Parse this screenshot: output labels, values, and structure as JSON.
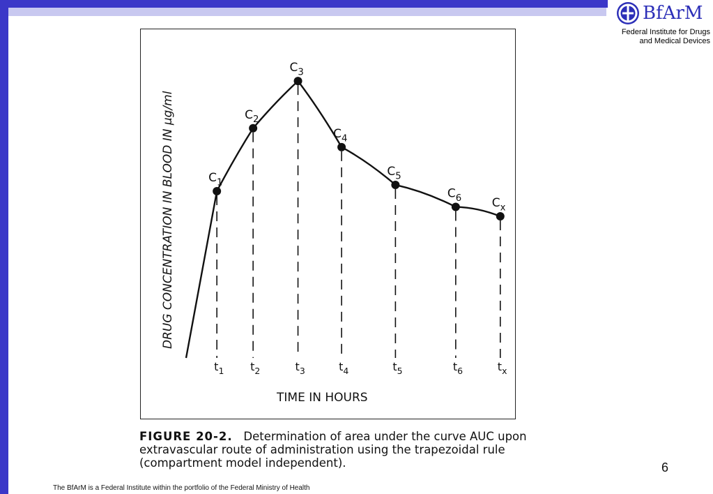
{
  "brand": {
    "name": "BfArM",
    "subtitle_line1": "Federal Institute for Drugs",
    "subtitle_line2": "and Medical Devices"
  },
  "colors": {
    "bar": "#3b37c8",
    "band": "#c8c8f0",
    "logo": "#2c2fb8"
  },
  "caption": {
    "lead": "FIGURE 20-2.",
    "line1": "Determination of area under the curve AUC upon",
    "line2": "extravascular route of administration using the trapezoidal rule",
    "line3": "(compartment model independent)."
  },
  "page_number": "6",
  "footer": "The BfArM is a Federal Institute within the portfolio of the Federal Ministry of Health",
  "chart_data": {
    "type": "line",
    "ylabel": "DRUG CONCENTRATION IN BLOOD IN µg/ml",
    "xlabel": "TIME IN HOURS",
    "grid": false,
    "start": {
      "x": 0,
      "y": 0
    },
    "points": [
      {
        "label": "C",
        "sub": "1",
        "tick": "t",
        "tick_sub": "1",
        "x": 0.96,
        "y": 0.53
      },
      {
        "label": "C",
        "sub": "2",
        "tick": "t",
        "tick_sub": "2",
        "x": 2.09,
        "y": 0.73
      },
      {
        "label": "C",
        "sub": "3",
        "tick": "t",
        "tick_sub": "3",
        "x": 3.49,
        "y": 0.88
      },
      {
        "label": "C",
        "sub": "4",
        "tick": "t",
        "tick_sub": "4",
        "x": 4.85,
        "y": 0.67
      },
      {
        "label": "C",
        "sub": "5",
        "tick": "t",
        "tick_sub": "5",
        "x": 6.53,
        "y": 0.55
      },
      {
        "label": "C",
        "sub": "6",
        "tick": "t",
        "tick_sub": "6",
        "x": 8.41,
        "y": 0.48
      },
      {
        "label": "C",
        "sub": "x",
        "tick": "t",
        "tick_sub": "x",
        "x": 9.8,
        "y": 0.45
      }
    ],
    "xlim": [
      0,
      10
    ],
    "ylim": [
      0,
      1
    ]
  }
}
